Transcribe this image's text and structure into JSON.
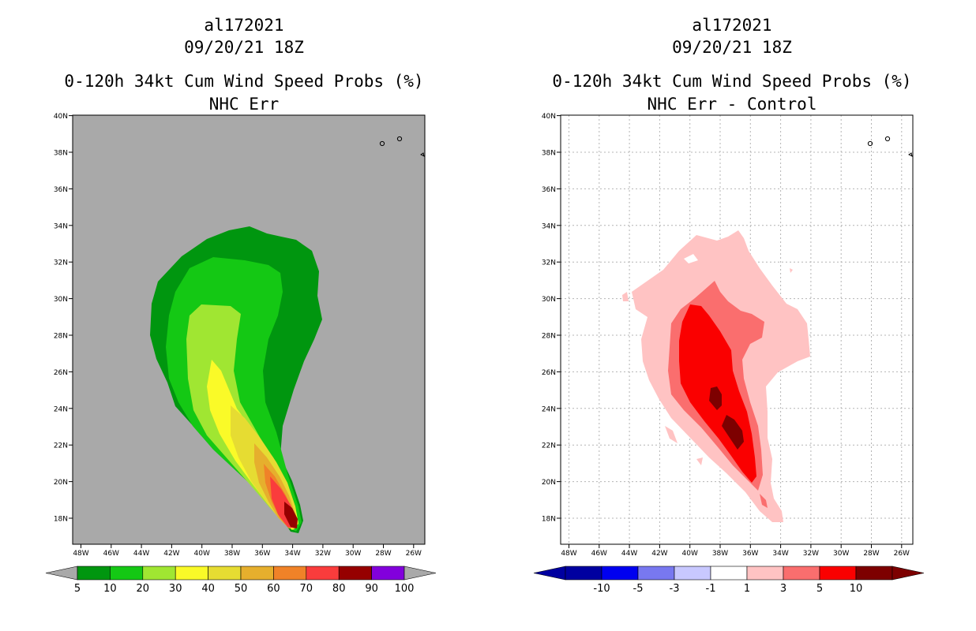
{
  "left_panel": {
    "storm_id": "al172021",
    "datetime": "09/20/21 18Z",
    "product": "0-120h 34kt Cum Wind Speed Probs (%)",
    "subtitle": "NHC Err",
    "background_color": "#a9a9a9",
    "colorbar": {
      "labels": [
        "5",
        "10",
        "20",
        "30",
        "40",
        "50",
        "60",
        "70",
        "80",
        "90",
        "100"
      ],
      "colors": [
        "#00960f",
        "#14c814",
        "#a0e632",
        "#fafa28",
        "#e6dc32",
        "#e6af2d",
        "#f08228",
        "#fa3c3c",
        "#960000",
        "#8200dc"
      ]
    }
  },
  "right_panel": {
    "storm_id": "al172021",
    "datetime": "09/20/21 18Z",
    "product": "0-120h 34kt Cum Wind Speed Probs (%)",
    "subtitle": "NHC Err - Control",
    "colorbar": {
      "labels": [
        "-10",
        "-5",
        "-3",
        "-1",
        "1",
        "3",
        "5",
        "10"
      ],
      "colors": [
        "#0000a0",
        "#0000f0",
        "#7878f0",
        "#c8c8ff",
        "#ffffff",
        "#ffc3c3",
        "#fa6e6e",
        "#fa0000",
        "#7d0000"
      ]
    }
  },
  "axes": {
    "lat_labels": [
      "18N",
      "20N",
      "22N",
      "24N",
      "26N",
      "28N",
      "30N",
      "32N",
      "34N",
      "36N",
      "38N",
      "40N"
    ],
    "lon_labels": [
      "48W",
      "46W",
      "44W",
      "42W",
      "40W",
      "38W",
      "36W",
      "34W",
      "32W",
      "30W",
      "28W",
      "26W"
    ]
  }
}
